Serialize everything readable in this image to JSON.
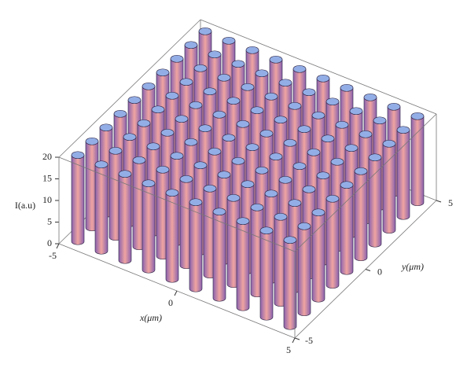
{
  "chart_data": {
    "type": "pillars3d",
    "zlabel": "I(a.u)",
    "xlabel": "x(μm)",
    "ylabel": "y(μm)",
    "xlim": [
      -5,
      5
    ],
    "ylim": [
      -5,
      5
    ],
    "zlim": [
      0,
      20
    ],
    "xticks": [
      -5,
      0,
      5
    ],
    "yticks": [
      -5,
      0,
      5
    ],
    "zticks": [
      0,
      5,
      10,
      15,
      20
    ],
    "x": [
      -4.5,
      -3.5,
      -2.5,
      -1.5,
      -0.5,
      0.5,
      1.5,
      2.5,
      3.5,
      4.5
    ],
    "y": [
      -4.5,
      -3.5,
      -2.5,
      -1.5,
      -0.5,
      0.5,
      1.5,
      2.5,
      3.5,
      4.5
    ],
    "values": [
      [
        20,
        20,
        20,
        20,
        20,
        20,
        20,
        20,
        20,
        20
      ],
      [
        20,
        20,
        20,
        20,
        20,
        20,
        20,
        20,
        20,
        20
      ],
      [
        20,
        20,
        20,
        20,
        20,
        20,
        20,
        20,
        20,
        20
      ],
      [
        20,
        20,
        20,
        20,
        20,
        20,
        20,
        20,
        20,
        20
      ],
      [
        20,
        20,
        20,
        20,
        20,
        20,
        20,
        20,
        20,
        20
      ],
      [
        20,
        20,
        20,
        20,
        20,
        20,
        20,
        20,
        20,
        20
      ],
      [
        20,
        20,
        20,
        20,
        20,
        20,
        20,
        20,
        20,
        20
      ],
      [
        20,
        20,
        20,
        20,
        20,
        20,
        20,
        20,
        20,
        20
      ],
      [
        20,
        20,
        20,
        20,
        20,
        20,
        20,
        20,
        20,
        20
      ],
      [
        20,
        20,
        20,
        20,
        20,
        20,
        20,
        20,
        20,
        20
      ]
    ],
    "color": "#f0a4a0",
    "shade": "#8a62ae",
    "cap_color": "#93aee6"
  }
}
